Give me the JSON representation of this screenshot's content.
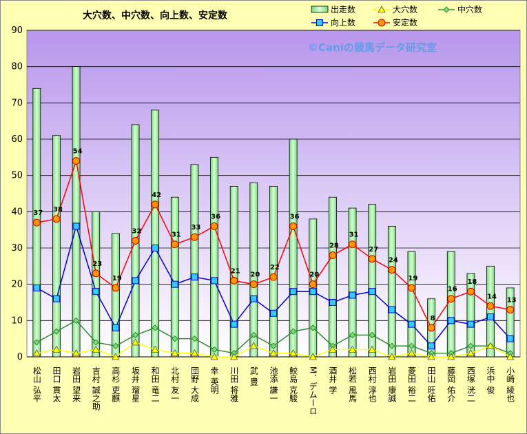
{
  "chart_data": {
    "type": "bar",
    "title": "大穴数、中穴数、向上数、安定数",
    "watermark": "©Caniの競馬データ研究室",
    "ylim": [
      0,
      90
    ],
    "yticks": [
      0,
      10,
      20,
      30,
      40,
      50,
      60,
      70,
      80,
      90
    ],
    "grid": true,
    "legend_position": "top-right",
    "categories": [
      "松山 弘平",
      "田口 貫太",
      "岩田 望来",
      "吉村 誠之助",
      "高杉 吏麒",
      "坂井 瑠星",
      "和田 竜二",
      "北村 友一",
      "団野 大成",
      "幸 英明",
      "川田 将雅",
      "武 豊",
      "池添 謙一",
      "鮫島 克駿",
      "M．デムーロ",
      "酒井 学",
      "松若 風馬",
      "西村 淳也",
      "岩田 康誠",
      "菱田 裕二",
      "田山 旺佑",
      "藤岡 佑介",
      "西塚 洸二",
      "浜中 俊",
      "小崎 綾也"
    ],
    "series": [
      {
        "name": "出走数",
        "kind": "bar",
        "color": "#a8f5a8",
        "values": [
          74,
          61,
          80,
          40,
          34,
          64,
          68,
          44,
          53,
          55,
          47,
          48,
          47,
          60,
          38,
          44,
          41,
          42,
          36,
          29,
          16,
          29,
          23,
          25,
          19
        ]
      },
      {
        "name": "大穴数",
        "kind": "line",
        "marker": "triangle",
        "color": "#ffff00",
        "values": [
          1,
          2,
          1,
          2,
          0,
          4,
          2,
          1,
          1,
          0,
          0,
          3,
          1,
          1,
          0,
          2,
          2,
          2,
          0,
          1,
          0,
          0,
          1,
          3,
          0
        ]
      },
      {
        "name": "中穴数",
        "kind": "line",
        "marker": "diamond",
        "color": "#2e8b2e",
        "values": [
          4,
          7,
          10,
          4,
          3,
          6,
          8,
          5,
          5,
          2,
          1,
          6,
          3,
          7,
          8,
          3,
          6,
          6,
          3,
          3,
          1,
          1,
          3,
          3,
          1
        ]
      },
      {
        "name": "向上数",
        "kind": "line",
        "marker": "square",
        "color": "#0000cc",
        "values": [
          19,
          16,
          36,
          18,
          8,
          21,
          30,
          20,
          22,
          21,
          9,
          16,
          12,
          18,
          18,
          15,
          17,
          18,
          13,
          9,
          3,
          10,
          9,
          11,
          5
        ]
      },
      {
        "name": "安定数",
        "kind": "line",
        "marker": "circle",
        "color": "#ff0000",
        "labels": true,
        "values": [
          37,
          38,
          54,
          23,
          19,
          32,
          42,
          31,
          33,
          36,
          21,
          20,
          22,
          36,
          20,
          28,
          31,
          27,
          24,
          19,
          8,
          16,
          18,
          14,
          13
        ]
      }
    ]
  }
}
